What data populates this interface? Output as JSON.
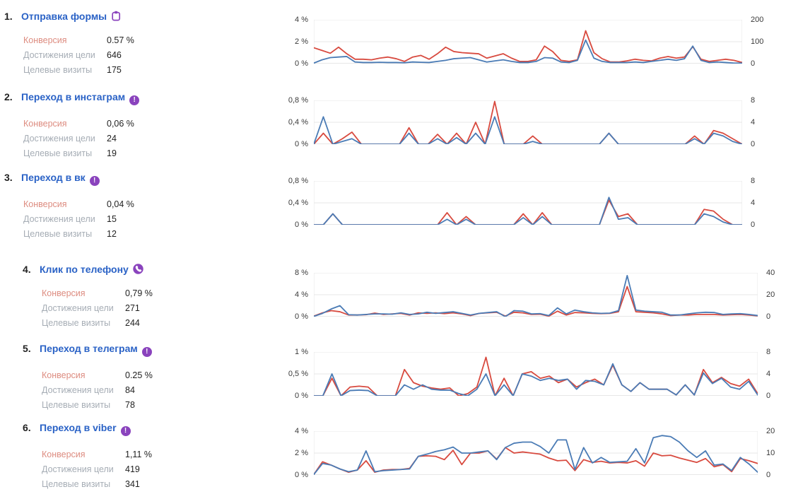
{
  "stats_labels": {
    "conversion": "Конверсия",
    "reaches": "Достижения цели",
    "target_visits": "Целевые визиты"
  },
  "colors": {
    "title_blue": "#2a62c6",
    "icon_purple": "#8a43bd",
    "conversion_label": "#dd8c80",
    "muted_label": "#a6adb5",
    "line_red": "#d84a3f",
    "line_blue": "#4a7bb5",
    "gridline": "#e7e7e7",
    "baseline": "#cfcfcf"
  },
  "goals": [
    {
      "num": "1.",
      "title": "Отправка формы",
      "icon": "form-icon",
      "conversion": "0.57 %",
      "reaches": "646",
      "target_visits": "175"
    },
    {
      "num": "2.",
      "title": "Переход в инстаграм",
      "icon": "exclamation-icon",
      "conversion": "0,06 %",
      "reaches": "24",
      "target_visits": "19"
    },
    {
      "num": "3.",
      "title": "Переход в вк",
      "icon": "exclamation-icon",
      "conversion": "0,04 %",
      "reaches": "15",
      "target_visits": "12"
    },
    {
      "num": "4.",
      "title": "Клик по телефону",
      "icon": "phone-icon",
      "conversion": "0,79 %",
      "reaches": "271",
      "target_visits": "244"
    },
    {
      "num": "5.",
      "title": "Переход в телеграм",
      "icon": "exclamation-icon",
      "conversion": "0.25 %",
      "reaches": "84",
      "target_visits": "78"
    },
    {
      "num": "6.",
      "title": "Переход в viber",
      "icon": "exclamation-icon",
      "conversion": "1,11 %",
      "reaches": "419",
      "target_visits": "341"
    }
  ],
  "icon_exclamation_glyph": "!",
  "chart_data": [
    {
      "type": "line",
      "x_axis": "hidden",
      "grid": true,
      "legend": "none",
      "ylim_left": [
        0,
        4
      ],
      "yticks_left": [
        "4 %",
        "2 %",
        "0 %"
      ],
      "ylim_right": [
        0,
        200
      ],
      "yticks_right": [
        "200",
        "100",
        "0"
      ],
      "series": [
        {
          "name": "red",
          "color": "#d84a3f",
          "values": [
            1.45,
            1.2,
            0.95,
            1.5,
            0.9,
            0.4,
            0.4,
            0.35,
            0.5,
            0.6,
            0.45,
            0.2,
            0.6,
            0.75,
            0.4,
            0.9,
            1.5,
            1.1,
            1.0,
            0.95,
            0.9,
            0.5,
            0.7,
            0.9,
            0.5,
            0.2,
            0.2,
            0.35,
            1.6,
            1.1,
            0.3,
            0.2,
            0.35,
            3.0,
            1.0,
            0.45,
            0.15,
            0.15,
            0.25,
            0.4,
            0.3,
            0.25,
            0.5,
            0.65,
            0.5,
            0.6,
            1.55,
            0.4,
            0.2,
            0.3,
            0.4,
            0.3,
            0.1
          ]
        },
        {
          "name": "blue",
          "color": "#4a7bb5",
          "values": [
            0.05,
            0.35,
            0.55,
            0.6,
            0.65,
            0.15,
            0.1,
            0.1,
            0.12,
            0.1,
            0.1,
            0.08,
            0.15,
            0.12,
            0.1,
            0.2,
            0.3,
            0.45,
            0.5,
            0.55,
            0.35,
            0.15,
            0.25,
            0.35,
            0.2,
            0.1,
            0.1,
            0.2,
            0.55,
            0.5,
            0.15,
            0.1,
            0.3,
            2.15,
            0.5,
            0.2,
            0.1,
            0.1,
            0.1,
            0.15,
            0.1,
            0.2,
            0.3,
            0.4,
            0.3,
            0.45,
            1.6,
            0.3,
            0.1,
            0.15,
            0.1,
            0.05,
            0.05
          ]
        }
      ]
    },
    {
      "type": "line",
      "x_axis": "hidden",
      "grid": true,
      "legend": "none",
      "ylim_left": [
        0,
        0.8
      ],
      "yticks_left": [
        "0,8 %",
        "0,4 %",
        "0 %"
      ],
      "ylim_right": [
        0,
        8
      ],
      "yticks_right": [
        "8",
        "4",
        "0"
      ],
      "series": [
        {
          "name": "red",
          "color": "#d84a3f",
          "values": [
            0,
            0.2,
            0,
            0.1,
            0.22,
            0,
            0,
            0,
            0,
            0,
            0.3,
            0,
            0,
            0.18,
            0,
            0.2,
            0,
            0.4,
            0,
            0.78,
            0,
            0,
            0,
            0.15,
            0,
            0,
            0,
            0,
            0,
            0,
            0,
            0.2,
            0,
            0,
            0,
            0,
            0,
            0,
            0,
            0,
            0.15,
            0,
            0.25,
            0.2,
            0.1,
            0
          ]
        },
        {
          "name": "blue",
          "color": "#4a7bb5",
          "values": [
            0,
            0.5,
            0,
            0.05,
            0.1,
            0,
            0,
            0,
            0,
            0,
            0.2,
            0,
            0,
            0.1,
            0,
            0.12,
            0,
            0.2,
            0,
            0.5,
            0,
            0,
            0,
            0.05,
            0,
            0,
            0,
            0,
            0,
            0,
            0,
            0.2,
            0,
            0,
            0,
            0,
            0,
            0,
            0,
            0,
            0.1,
            0,
            0.2,
            0.15,
            0.05,
            0
          ]
        }
      ]
    },
    {
      "type": "line",
      "x_axis": "hidden",
      "grid": true,
      "legend": "none",
      "ylim_left": [
        0,
        0.8
      ],
      "yticks_left": [
        "0,8 %",
        "0,4 %",
        "0 %"
      ],
      "ylim_right": [
        0,
        8
      ],
      "yticks_right": [
        "8",
        "4",
        "0"
      ],
      "series": [
        {
          "name": "red",
          "color": "#d84a3f",
          "values": [
            0,
            0,
            0.2,
            0,
            0,
            0,
            0,
            0,
            0,
            0,
            0,
            0,
            0,
            0,
            0.22,
            0,
            0.15,
            0,
            0,
            0,
            0,
            0,
            0.2,
            0,
            0.22,
            0,
            0,
            0,
            0,
            0,
            0,
            0.45,
            0.15,
            0.2,
            0,
            0,
            0,
            0,
            0,
            0,
            0,
            0.28,
            0.25,
            0.1,
            0,
            0
          ]
        },
        {
          "name": "blue",
          "color": "#4a7bb5",
          "values": [
            0,
            0,
            0.2,
            0,
            0,
            0,
            0,
            0,
            0,
            0,
            0,
            0,
            0,
            0,
            0.1,
            0,
            0.1,
            0,
            0,
            0,
            0,
            0,
            0.13,
            0,
            0.15,
            0,
            0,
            0,
            0,
            0,
            0,
            0.5,
            0.1,
            0.13,
            0,
            0,
            0,
            0,
            0,
            0,
            0,
            0.2,
            0.15,
            0.05,
            0,
            0
          ]
        }
      ]
    },
    {
      "type": "line",
      "x_axis": "hidden",
      "grid": true,
      "legend": "none",
      "ylim_left": [
        0,
        8
      ],
      "yticks_left": [
        "8 %",
        "4 %",
        "0 %"
      ],
      "ylim_right": [
        0,
        40
      ],
      "yticks_right": [
        "40",
        "20",
        "0"
      ],
      "series": [
        {
          "name": "red",
          "color": "#d84a3f",
          "values": [
            0.1,
            0.7,
            1.1,
            0.9,
            0.3,
            0.3,
            0.35,
            0.65,
            0.4,
            0.5,
            0.6,
            0.3,
            0.7,
            0.6,
            0.7,
            0.55,
            0.7,
            0.5,
            0.2,
            0.6,
            0.7,
            0.8,
            0.1,
            0.8,
            0.7,
            0.4,
            0.45,
            0.1,
            1.0,
            0.3,
            0.75,
            0.7,
            0.6,
            0.55,
            0.6,
            0.9,
            5.5,
            0.9,
            0.8,
            0.7,
            0.5,
            0.2,
            0.3,
            0.3,
            0.4,
            0.4,
            0.4,
            0.3,
            0.35,
            0.4,
            0.3,
            0.15
          ]
        },
        {
          "name": "blue",
          "color": "#4a7bb5",
          "values": [
            0.05,
            0.6,
            1.4,
            2.0,
            0.35,
            0.3,
            0.4,
            0.5,
            0.5,
            0.45,
            0.7,
            0.4,
            0.5,
            0.8,
            0.6,
            0.75,
            0.9,
            0.6,
            0.3,
            0.6,
            0.75,
            0.9,
            0.0,
            1.1,
            1.0,
            0.5,
            0.55,
            0.2,
            1.6,
            0.5,
            1.2,
            0.9,
            0.7,
            0.6,
            0.65,
            1.1,
            7.5,
            1.2,
            1.0,
            0.9,
            0.8,
            0.3,
            0.3,
            0.5,
            0.7,
            0.8,
            0.75,
            0.4,
            0.5,
            0.55,
            0.4,
            0.2
          ]
        }
      ]
    },
    {
      "type": "line",
      "x_axis": "hidden",
      "grid": true,
      "legend": "none",
      "ylim_left": [
        0,
        1
      ],
      "yticks_left": [
        "1 %",
        "0,5 %",
        "0 %"
      ],
      "ylim_right": [
        0,
        8
      ],
      "yticks_right": [
        "8",
        "4",
        "0"
      ],
      "series": [
        {
          "name": "red",
          "color": "#d84a3f",
          "values": [
            0,
            0,
            0.4,
            0,
            0.2,
            0.22,
            0.2,
            0,
            0,
            0,
            0.6,
            0.3,
            0.22,
            0.18,
            0.15,
            0.18,
            0,
            0.05,
            0.2,
            0.88,
            0,
            0.4,
            0,
            0.5,
            0.55,
            0.4,
            0.45,
            0.3,
            0.38,
            0.2,
            0.3,
            0.38,
            0.25,
            0.7,
            0.25,
            0.1,
            0.3,
            0.15,
            0.15,
            0.15,
            0.02,
            0.25,
            0.02,
            0.6,
            0.3,
            0.42,
            0.28,
            0.22,
            0.38,
            0.05
          ]
        },
        {
          "name": "blue",
          "color": "#4a7bb5",
          "values": [
            0,
            0,
            0.5,
            0,
            0.12,
            0.13,
            0.12,
            0,
            0,
            0,
            0.25,
            0.15,
            0.25,
            0.15,
            0.13,
            0.13,
            0.05,
            0,
            0.15,
            0.5,
            0,
            0.25,
            0,
            0.5,
            0.45,
            0.35,
            0.4,
            0.35,
            0.38,
            0.15,
            0.35,
            0.33,
            0.25,
            0.73,
            0.25,
            0.1,
            0.3,
            0.15,
            0.15,
            0.15,
            0.02,
            0.25,
            0.02,
            0.52,
            0.28,
            0.4,
            0.2,
            0.15,
            0.33,
            0.02
          ]
        }
      ]
    },
    {
      "type": "line",
      "x_axis": "hidden",
      "grid": true,
      "legend": "none",
      "ylim_left": [
        0,
        4
      ],
      "yticks_left": [
        "4 %",
        "2 %",
        "0 %"
      ],
      "ylim_right": [
        0,
        20
      ],
      "yticks_right": [
        "20",
        "10",
        "0"
      ],
      "series": [
        {
          "name": "red",
          "color": "#d84a3f",
          "values": [
            0.05,
            1.2,
            0.9,
            0.55,
            0.25,
            0.45,
            1.3,
            0.25,
            0.45,
            0.5,
            0.5,
            0.6,
            1.7,
            1.75,
            1.7,
            1.4,
            2.25,
            0.95,
            2.0,
            2.0,
            2.2,
            1.45,
            2.5,
            2.0,
            2.1,
            2.0,
            1.9,
            1.55,
            1.3,
            1.35,
            0.4,
            1.4,
            1.15,
            1.25,
            1.1,
            1.15,
            1.1,
            1.3,
            0.8,
            2.0,
            1.75,
            1.8,
            1.55,
            1.35,
            1.15,
            1.5,
            0.75,
            0.95,
            0.3,
            1.5,
            1.3,
            1.05
          ]
        },
        {
          "name": "blue",
          "color": "#4a7bb5",
          "values": [
            0.05,
            1.05,
            0.9,
            0.55,
            0.3,
            0.45,
            2.2,
            0.3,
            0.4,
            0.45,
            0.5,
            0.55,
            1.7,
            1.9,
            2.15,
            2.3,
            2.55,
            2.0,
            2.0,
            2.1,
            2.2,
            1.4,
            2.5,
            2.9,
            3.0,
            3.0,
            2.6,
            2.0,
            3.2,
            3.2,
            0.5,
            2.5,
            1.1,
            1.6,
            1.15,
            1.2,
            1.25,
            2.4,
            1.1,
            3.4,
            3.6,
            3.5,
            3.0,
            2.2,
            1.6,
            2.2,
            0.9,
            1.0,
            0.4,
            1.6,
            1.0,
            0.25
          ]
        }
      ]
    }
  ]
}
